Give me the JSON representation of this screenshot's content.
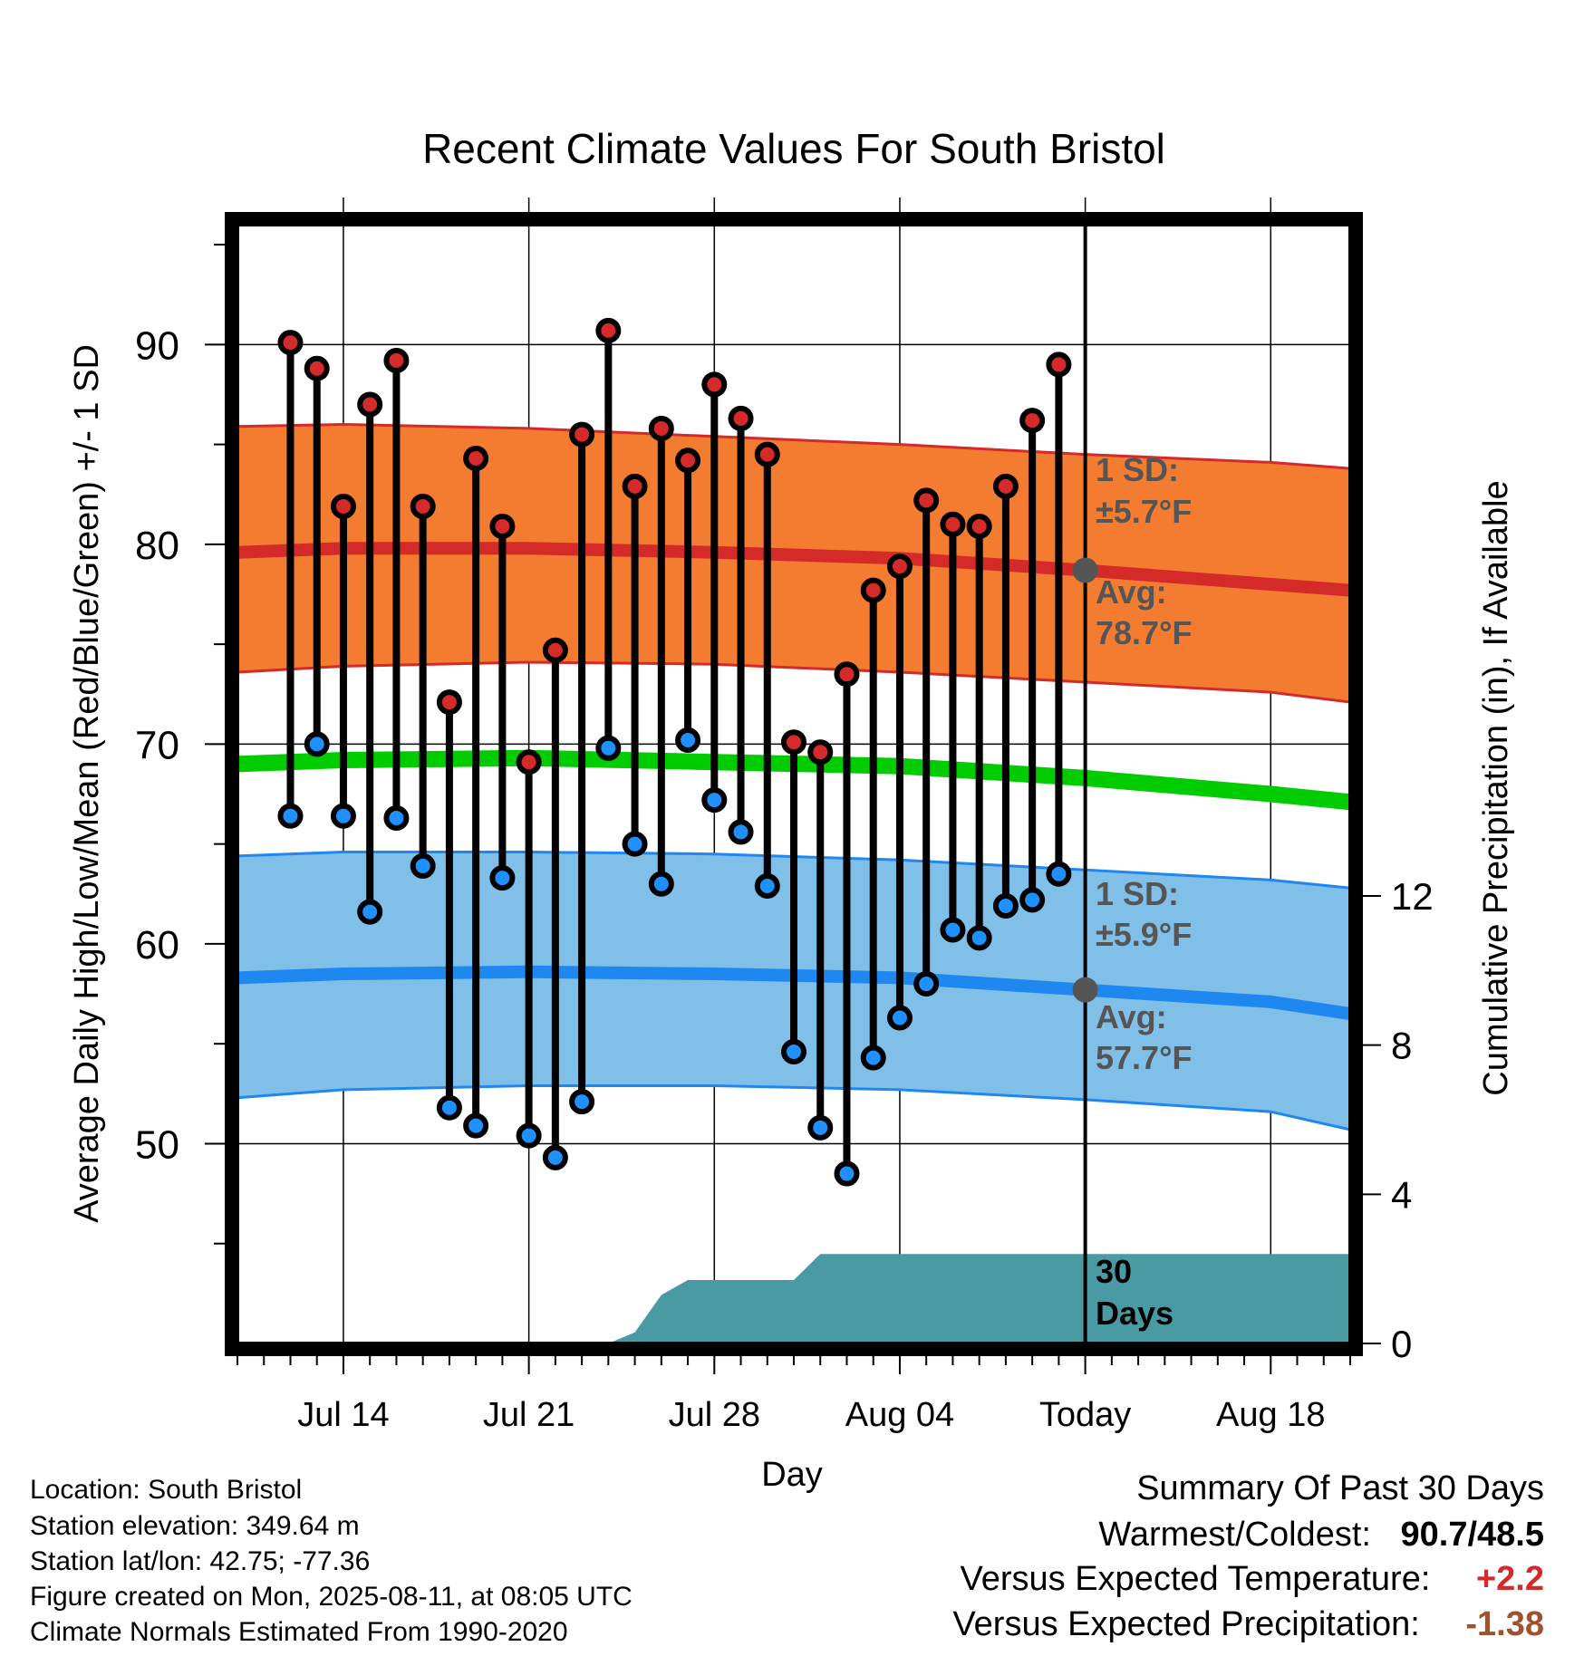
{
  "chart_data": {
    "type": "line",
    "title": "Recent Climate Values For South Bristol",
    "xlabel": "Day",
    "ylabel": "Average Daily High/Low/Mean (Red/Blue/Green) +/- 1 SD",
    "y2label": "Cumulative Precipitation (in), If Available",
    "ylim": [
      40,
      96
    ],
    "y_ticks": [
      "50",
      "60",
      "70",
      "80",
      "90"
    ],
    "y2lim": [
      0,
      30
    ],
    "y2_ticks": [
      "0",
      "4",
      "8",
      "12"
    ],
    "x_tick_labels": [
      "Jul 14",
      "Jul 21",
      "Jul 28",
      "Aug 04",
      "Today",
      "Aug 18"
    ],
    "x_range_days": [
      "2025-07-10",
      "2025-08-21"
    ],
    "today": "2025-08-11",
    "observed": {
      "dates": [
        "2025-07-12",
        "2025-07-13",
        "2025-07-14",
        "2025-07-15",
        "2025-07-16",
        "2025-07-17",
        "2025-07-18",
        "2025-07-19",
        "2025-07-20",
        "2025-07-21",
        "2025-07-22",
        "2025-07-23",
        "2025-07-24",
        "2025-07-25",
        "2025-07-26",
        "2025-07-27",
        "2025-07-28",
        "2025-07-29",
        "2025-07-30",
        "2025-07-31",
        "2025-08-01",
        "2025-08-02",
        "2025-08-03",
        "2025-08-04",
        "2025-08-05",
        "2025-08-06",
        "2025-08-07",
        "2025-08-08",
        "2025-08-09",
        "2025-08-10"
      ],
      "high": [
        90.1,
        88.8,
        81.9,
        87.0,
        89.2,
        81.9,
        72.1,
        84.3,
        80.9,
        69.1,
        74.7,
        85.5,
        90.7,
        82.9,
        85.8,
        84.2,
        88.0,
        86.3,
        84.5,
        70.1,
        69.6,
        73.5,
        77.7,
        78.9,
        82.2,
        81.0,
        80.9,
        82.9,
        86.2,
        89.0
      ],
      "low": [
        66.4,
        70.0,
        66.4,
        61.6,
        66.3,
        63.9,
        51.8,
        50.9,
        63.3,
        50.4,
        49.3,
        52.1,
        69.8,
        65.0,
        63.0,
        70.2,
        67.2,
        65.6,
        62.9,
        54.6,
        50.8,
        48.5,
        54.3,
        56.3,
        58.0,
        60.7,
        60.3,
        61.9,
        62.2,
        63.5
      ]
    },
    "normals": {
      "dates": [
        "2025-07-10",
        "2025-07-14",
        "2025-07-21",
        "2025-07-28",
        "2025-08-04",
        "2025-08-11",
        "2025-08-18",
        "2025-08-21"
      ],
      "high_avg": [
        79.6,
        79.8,
        79.8,
        79.6,
        79.3,
        78.7,
        78.0,
        77.7
      ],
      "high_sd_upper": [
        85.9,
        86.0,
        85.8,
        85.4,
        85.0,
        84.5,
        84.1,
        83.8
      ],
      "high_sd_lower": [
        73.6,
        73.9,
        74.1,
        74.0,
        73.6,
        73.1,
        72.6,
        72.1
      ],
      "mean_avg": [
        69.0,
        69.2,
        69.3,
        69.1,
        68.9,
        68.3,
        67.5,
        67.1
      ],
      "low_avg": [
        58.3,
        58.5,
        58.6,
        58.5,
        58.3,
        57.7,
        57.1,
        56.5
      ],
      "low_sd_upper": [
        64.4,
        64.6,
        64.6,
        64.5,
        64.2,
        63.7,
        63.2,
        62.8
      ],
      "low_sd_lower": [
        52.3,
        52.7,
        52.9,
        52.9,
        52.7,
        52.2,
        51.6,
        50.7
      ]
    },
    "precip_cumulative": {
      "dates": [
        "2025-07-10",
        "2025-07-24",
        "2025-07-25",
        "2025-07-26",
        "2025-07-27",
        "2025-07-31",
        "2025-08-01",
        "2025-08-21"
      ],
      "values": [
        0,
        0,
        0.3,
        1.3,
        1.7,
        1.7,
        2.4,
        2.4
      ]
    },
    "annotations": {
      "high_sd": "1 SD:",
      "high_sd_value": "±5.7°F",
      "high_avg_label": "Avg:",
      "high_avg_value": "78.7°F",
      "low_sd": "1 SD:",
      "low_sd_value": "±5.9°F",
      "low_avg_label": "Avg:",
      "low_avg_value": "57.7°F",
      "window_count": "30",
      "window_unit": "Days"
    },
    "colors": {
      "high_band": "#f47c30",
      "high_line": "#d42a2a",
      "mean_line": "#00cc00",
      "low_band": "#80c0e8",
      "low_line": "#1e88f0",
      "high_dot": "#d42a2a",
      "low_dot": "#1e90ff",
      "precip": "#4a9aa4",
      "annotation": "#555555"
    }
  },
  "footer": {
    "location": "Location: South Bristol",
    "elevation": "Station elevation: 349.64 m",
    "latlon": "Station lat/lon: 42.75; -77.36",
    "created": "Figure created on Mon, 2025-08-11, at 08:05 UTC",
    "normals": "Climate Normals Estimated From 1990-2020"
  },
  "summary": {
    "title": "Summary Of Past 30 Days",
    "warm_cold_label": "Warmest/Coldest:",
    "warm_cold_value": "90.7/48.5",
    "temp_label": "Versus Expected Temperature:",
    "temp_value": "+2.2",
    "temp_color": "#d42a2a",
    "precip_label": "Versus Expected Precipitation:",
    "precip_value": "-1.38",
    "precip_color": "#a0522d"
  }
}
